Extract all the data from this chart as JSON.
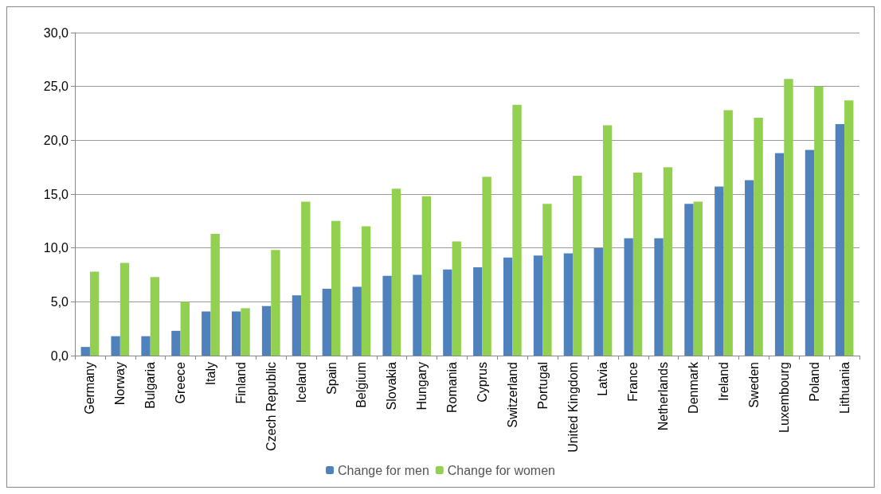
{
  "chart_data": {
    "type": "bar",
    "categories": [
      "Germany",
      "Norway",
      "Bulgaria",
      "Greece",
      "Italy",
      "Finland",
      "Czech Republic",
      "Iceland",
      "Spain",
      "Belgium",
      "Slovakia",
      "Hungary",
      "Romania",
      "Cyprus",
      "Switzerland",
      "Portugal",
      "United Kingdom",
      "Latvia",
      "France",
      "Netherlands",
      "Denmark",
      "Ireland",
      "Sweden",
      "Luxembourg",
      "Poland",
      "Lithuania"
    ],
    "series": [
      {
        "name": "Change for men",
        "color": "#4f81bd",
        "values": [
          0.8,
          1.8,
          1.8,
          2.3,
          4.1,
          4.1,
          4.6,
          5.6,
          6.2,
          6.4,
          7.4,
          7.5,
          8.0,
          8.2,
          9.1,
          9.3,
          9.5,
          10.0,
          10.9,
          10.9,
          14.1,
          15.7,
          16.3,
          18.8,
          19.1,
          21.5
        ]
      },
      {
        "name": "Change for women",
        "color": "#92d050",
        "values": [
          7.8,
          8.6,
          7.3,
          5.0,
          11.3,
          4.4,
          9.8,
          14.3,
          12.5,
          12.0,
          15.5,
          14.8,
          10.6,
          16.6,
          23.3,
          14.1,
          16.7,
          21.4,
          17.0,
          17.5,
          14.3,
          22.8,
          22.1,
          25.7,
          25.0,
          23.7
        ]
      }
    ],
    "ylim": [
      0,
      30
    ],
    "yticks": [
      {
        "value": 0,
        "label": "0,0"
      },
      {
        "value": 5,
        "label": "5,0"
      },
      {
        "value": 10,
        "label": "10,0"
      },
      {
        "value": 15,
        "label": "15,0"
      },
      {
        "value": 20,
        "label": "20,0"
      },
      {
        "value": 25,
        "label": "25,0"
      },
      {
        "value": 30,
        "label": "30,0"
      }
    ],
    "grid": "y",
    "legend": "bottom"
  }
}
